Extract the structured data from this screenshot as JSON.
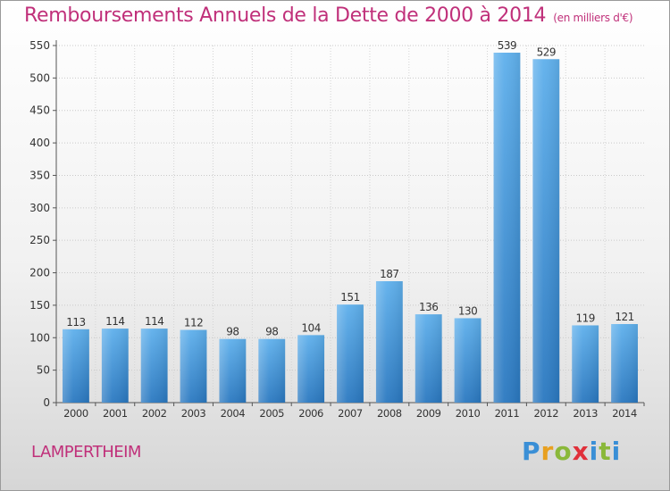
{
  "header": {
    "title": "Remboursements Annuels de la Dette de 2000 à 2014",
    "unit": "(en milliers d'€)"
  },
  "footer": {
    "city": "LAMPERTHEIM",
    "logo": "Proxiti"
  },
  "colors": {
    "title": "#c0307a",
    "bar_light": "#5fb0ec",
    "bar_dark": "#2a78c0"
  },
  "chart_data": {
    "type": "bar",
    "title": "Remboursements Annuels de la Dette de 2000 à 2014",
    "subtitle": "(en milliers d'€)",
    "xlabel": "",
    "ylabel": "",
    "ylim": [
      0,
      550
    ],
    "yticks": [
      0,
      50,
      100,
      150,
      200,
      250,
      300,
      350,
      400,
      450,
      500,
      550
    ],
    "grid": true,
    "legend": "none",
    "categories": [
      "2000",
      "2001",
      "2002",
      "2003",
      "2004",
      "2005",
      "2006",
      "2007",
      "2008",
      "2009",
      "2010",
      "2011",
      "2012",
      "2013",
      "2014"
    ],
    "values": [
      113,
      114,
      114,
      112,
      98,
      98,
      104,
      151,
      187,
      136,
      130,
      539,
      529,
      119,
      121
    ]
  }
}
